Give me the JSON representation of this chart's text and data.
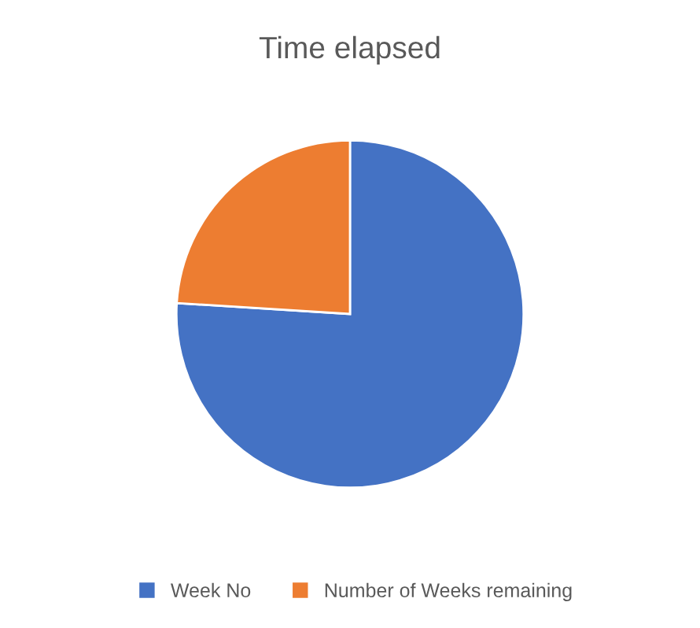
{
  "chart_data": {
    "type": "pie",
    "title": "Time elapsed",
    "categories": [
      "Week No",
      "Number of Weeks remaining"
    ],
    "values": [
      76,
      24
    ],
    "colors": [
      "#4472c4",
      "#ed7d31"
    ],
    "legend": "bottom"
  }
}
